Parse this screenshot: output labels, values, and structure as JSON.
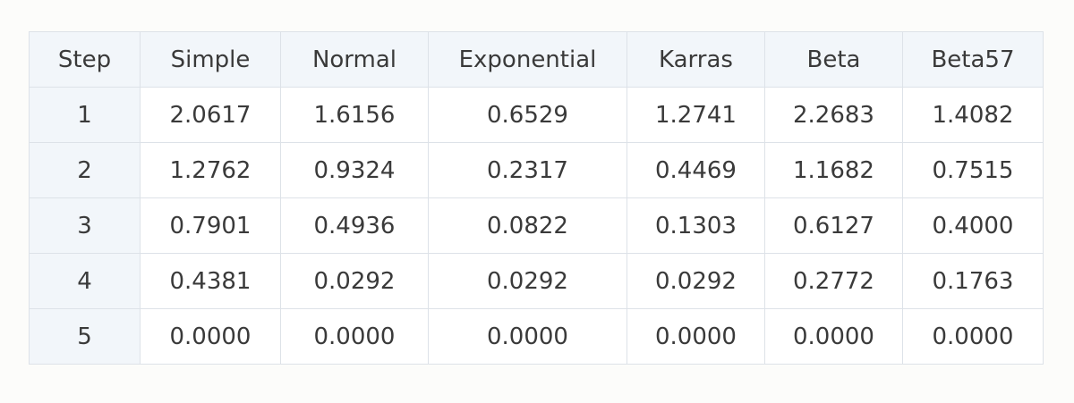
{
  "table": {
    "header": [
      "Step",
      "Simple",
      "Normal",
      "Exponential",
      "Karras",
      "Beta",
      "Beta57"
    ],
    "rows": [
      [
        "1",
        "2.0617",
        "1.6156",
        "0.6529",
        "1.2741",
        "2.2683",
        "1.4082"
      ],
      [
        "2",
        "1.2762",
        "0.9324",
        "0.2317",
        "0.4469",
        "1.1682",
        "0.7515"
      ],
      [
        "3",
        "0.7901",
        "0.4936",
        "0.0822",
        "0.1303",
        "0.6127",
        "0.4000"
      ],
      [
        "4",
        "0.4381",
        "0.0292",
        "0.0292",
        "0.0292",
        "0.2772",
        "0.1763"
      ],
      [
        "5",
        "0.0000",
        "0.0000",
        "0.0000",
        "0.0000",
        "0.0000",
        "0.0000"
      ]
    ]
  }
}
